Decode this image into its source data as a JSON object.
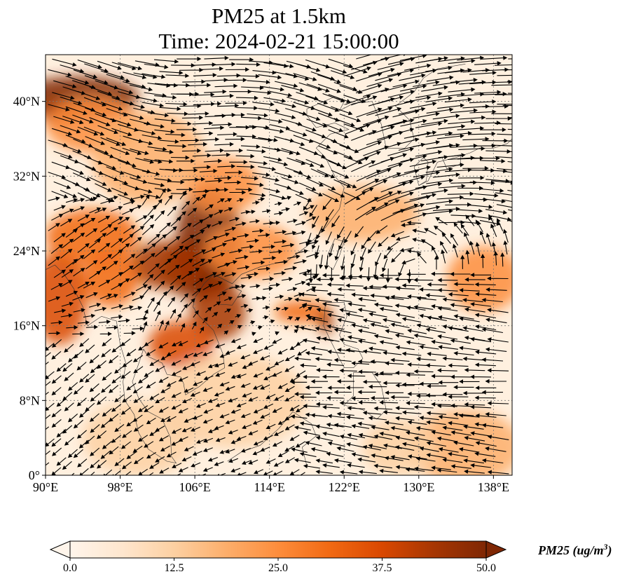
{
  "title": {
    "line1": "PM25 at 1.5km",
    "line2": "Time: 2024-02-21 15:00:00"
  },
  "map": {
    "extent": {
      "lon": [
        90,
        140
      ],
      "lat": [
        0,
        45
      ]
    },
    "lon_ticks": [
      {
        "value": 90,
        "label": "90°E"
      },
      {
        "value": 98,
        "label": "98°E"
      },
      {
        "value": 106,
        "label": "106°E"
      },
      {
        "value": 114,
        "label": "114°E"
      },
      {
        "value": 122,
        "label": "122°E"
      },
      {
        "value": 130,
        "label": "130°E"
      },
      {
        "value": 138,
        "label": "138°E"
      }
    ],
    "lat_ticks": [
      {
        "value": 0,
        "label": "0°"
      },
      {
        "value": 8,
        "label": "8°N"
      },
      {
        "value": 16,
        "label": "16°N"
      },
      {
        "value": 24,
        "label": "24°N"
      },
      {
        "value": 32,
        "label": "32°N"
      },
      {
        "value": 40,
        "label": "40°N"
      }
    ],
    "gridlines": true,
    "field": "PM2.5 concentration with wind vectors"
  },
  "colorbar": {
    "label_main": "PM25 (ug/m",
    "label_sup": "3",
    "label_end": ")",
    "min": 0.0,
    "max": 50.0,
    "ticks": [
      {
        "value": 0.0,
        "label": "0.0"
      },
      {
        "value": 12.5,
        "label": "12.5"
      },
      {
        "value": 25.0,
        "label": "25.0"
      },
      {
        "value": 37.5,
        "label": "37.5"
      },
      {
        "value": 50.0,
        "label": "50.0"
      }
    ],
    "colors": [
      "#fff5eb",
      "#fee6ce",
      "#fdd0a2",
      "#fdae6b",
      "#fd8d3c",
      "#f16913",
      "#d94801",
      "#a63603",
      "#7f2704"
    ],
    "extend": "both"
  },
  "pm25_hotspots": [
    {
      "lon": 93.5,
      "lat": 40.5,
      "value": 50,
      "rlon": 6.5,
      "rlat": 2.2
    },
    {
      "lon": 91.5,
      "lat": 38.8,
      "value": 42,
      "rlon": 2.2,
      "rlat": 1.5
    },
    {
      "lon": 95.0,
      "lat": 37.5,
      "value": 22,
      "rlon": 5,
      "rlat": 3
    },
    {
      "lon": 107.5,
      "lat": 25.0,
      "value": 50,
      "rlon": 3.5,
      "rlat": 6
    },
    {
      "lon": 106.5,
      "lat": 22.0,
      "value": 50,
      "rlon": 4.2,
      "rlat": 3.2
    },
    {
      "lon": 103.0,
      "lat": 22.5,
      "value": 44,
      "rlon": 4,
      "rlat": 2.6
    },
    {
      "lon": 108.5,
      "lat": 17.5,
      "value": 44,
      "rlon": 3,
      "rlat": 3
    },
    {
      "lon": 104.5,
      "lat": 14.0,
      "value": 36,
      "rlon": 3.5,
      "rlat": 2.5
    },
    {
      "lon": 91.5,
      "lat": 19.0,
      "value": 40,
      "rlon": 3,
      "rlat": 5
    },
    {
      "lon": 95.0,
      "lat": 25.5,
      "value": 30,
      "rlon": 5,
      "rlat": 3
    },
    {
      "lon": 97.0,
      "lat": 21.0,
      "value": 34,
      "rlon": 3,
      "rlat": 3
    },
    {
      "lon": 109.0,
      "lat": 31.0,
      "value": 26,
      "rlon": 4,
      "rlat": 3
    },
    {
      "lon": 117.5,
      "lat": 17.5,
      "value": 34,
      "rlon": 3,
      "rlat": 1.2
    },
    {
      "lon": 120.0,
      "lat": 16.5,
      "value": 42,
      "rlon": 0.8,
      "rlat": 1.5
    },
    {
      "lon": 112.0,
      "lat": 24.0,
      "value": 22,
      "rlon": 5,
      "rlat": 3
    },
    {
      "lon": 124.0,
      "lat": 28.0,
      "value": 18,
      "rlon": 6,
      "rlat": 3
    },
    {
      "lon": 137.0,
      "lat": 21.0,
      "value": 24,
      "rlon": 4,
      "rlat": 3.5
    },
    {
      "lon": 135.0,
      "lat": 3.0,
      "value": 18,
      "rlon": 6,
      "rlat": 4
    },
    {
      "lon": 128.0,
      "lat": 3.0,
      "value": 15,
      "rlon": 4,
      "rlat": 3
    },
    {
      "lon": 100.0,
      "lat": 4.0,
      "value": 14,
      "rlon": 6,
      "rlat": 4
    },
    {
      "lon": 110.0,
      "lat": 8.0,
      "value": 12,
      "rlon": 8,
      "rlat": 5
    },
    {
      "lon": 101.0,
      "lat": 34.0,
      "value": 16,
      "rlon": 6,
      "rlat": 5
    }
  ]
}
